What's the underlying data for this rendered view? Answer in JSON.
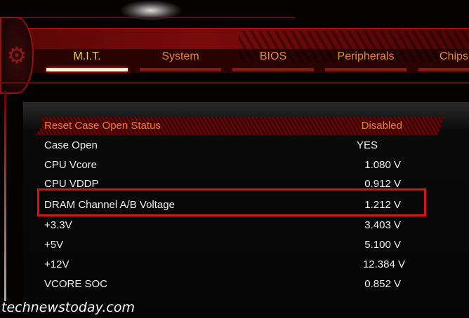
{
  "tabs": [
    {
      "label": "M.I.T.",
      "active": true
    },
    {
      "label": "System"
    },
    {
      "label": "BIOS"
    },
    {
      "label": "Peripherals"
    },
    {
      "label": "Chips"
    }
  ],
  "rows": [
    {
      "label": "Reset Case Open Status",
      "value": "Disabled",
      "selected": true
    },
    {
      "label": "Case Open",
      "value": "YES"
    },
    {
      "label": "CPU Vcore",
      "value": "1.080 V"
    },
    {
      "label": "CPU VDDP",
      "value": "0.912 V"
    },
    {
      "label": "DRAM Channel A/B Voltage",
      "value": "1.212 V",
      "highlighted": true
    },
    {
      "label": "+3.3V",
      "value": "3.403 V"
    },
    {
      "label": "+5V",
      "value": "5.100 V"
    },
    {
      "label": "+12V",
      "value": "12.384 V"
    },
    {
      "label": "VCORE SOC",
      "value": "0.852 V"
    }
  ],
  "watermark": "technewstoday.com",
  "colors": {
    "accent": "#d01818",
    "tab_text": "#e8853a",
    "active_tab": "#e8d25a"
  },
  "icons": {
    "logo": "gear-icon"
  }
}
